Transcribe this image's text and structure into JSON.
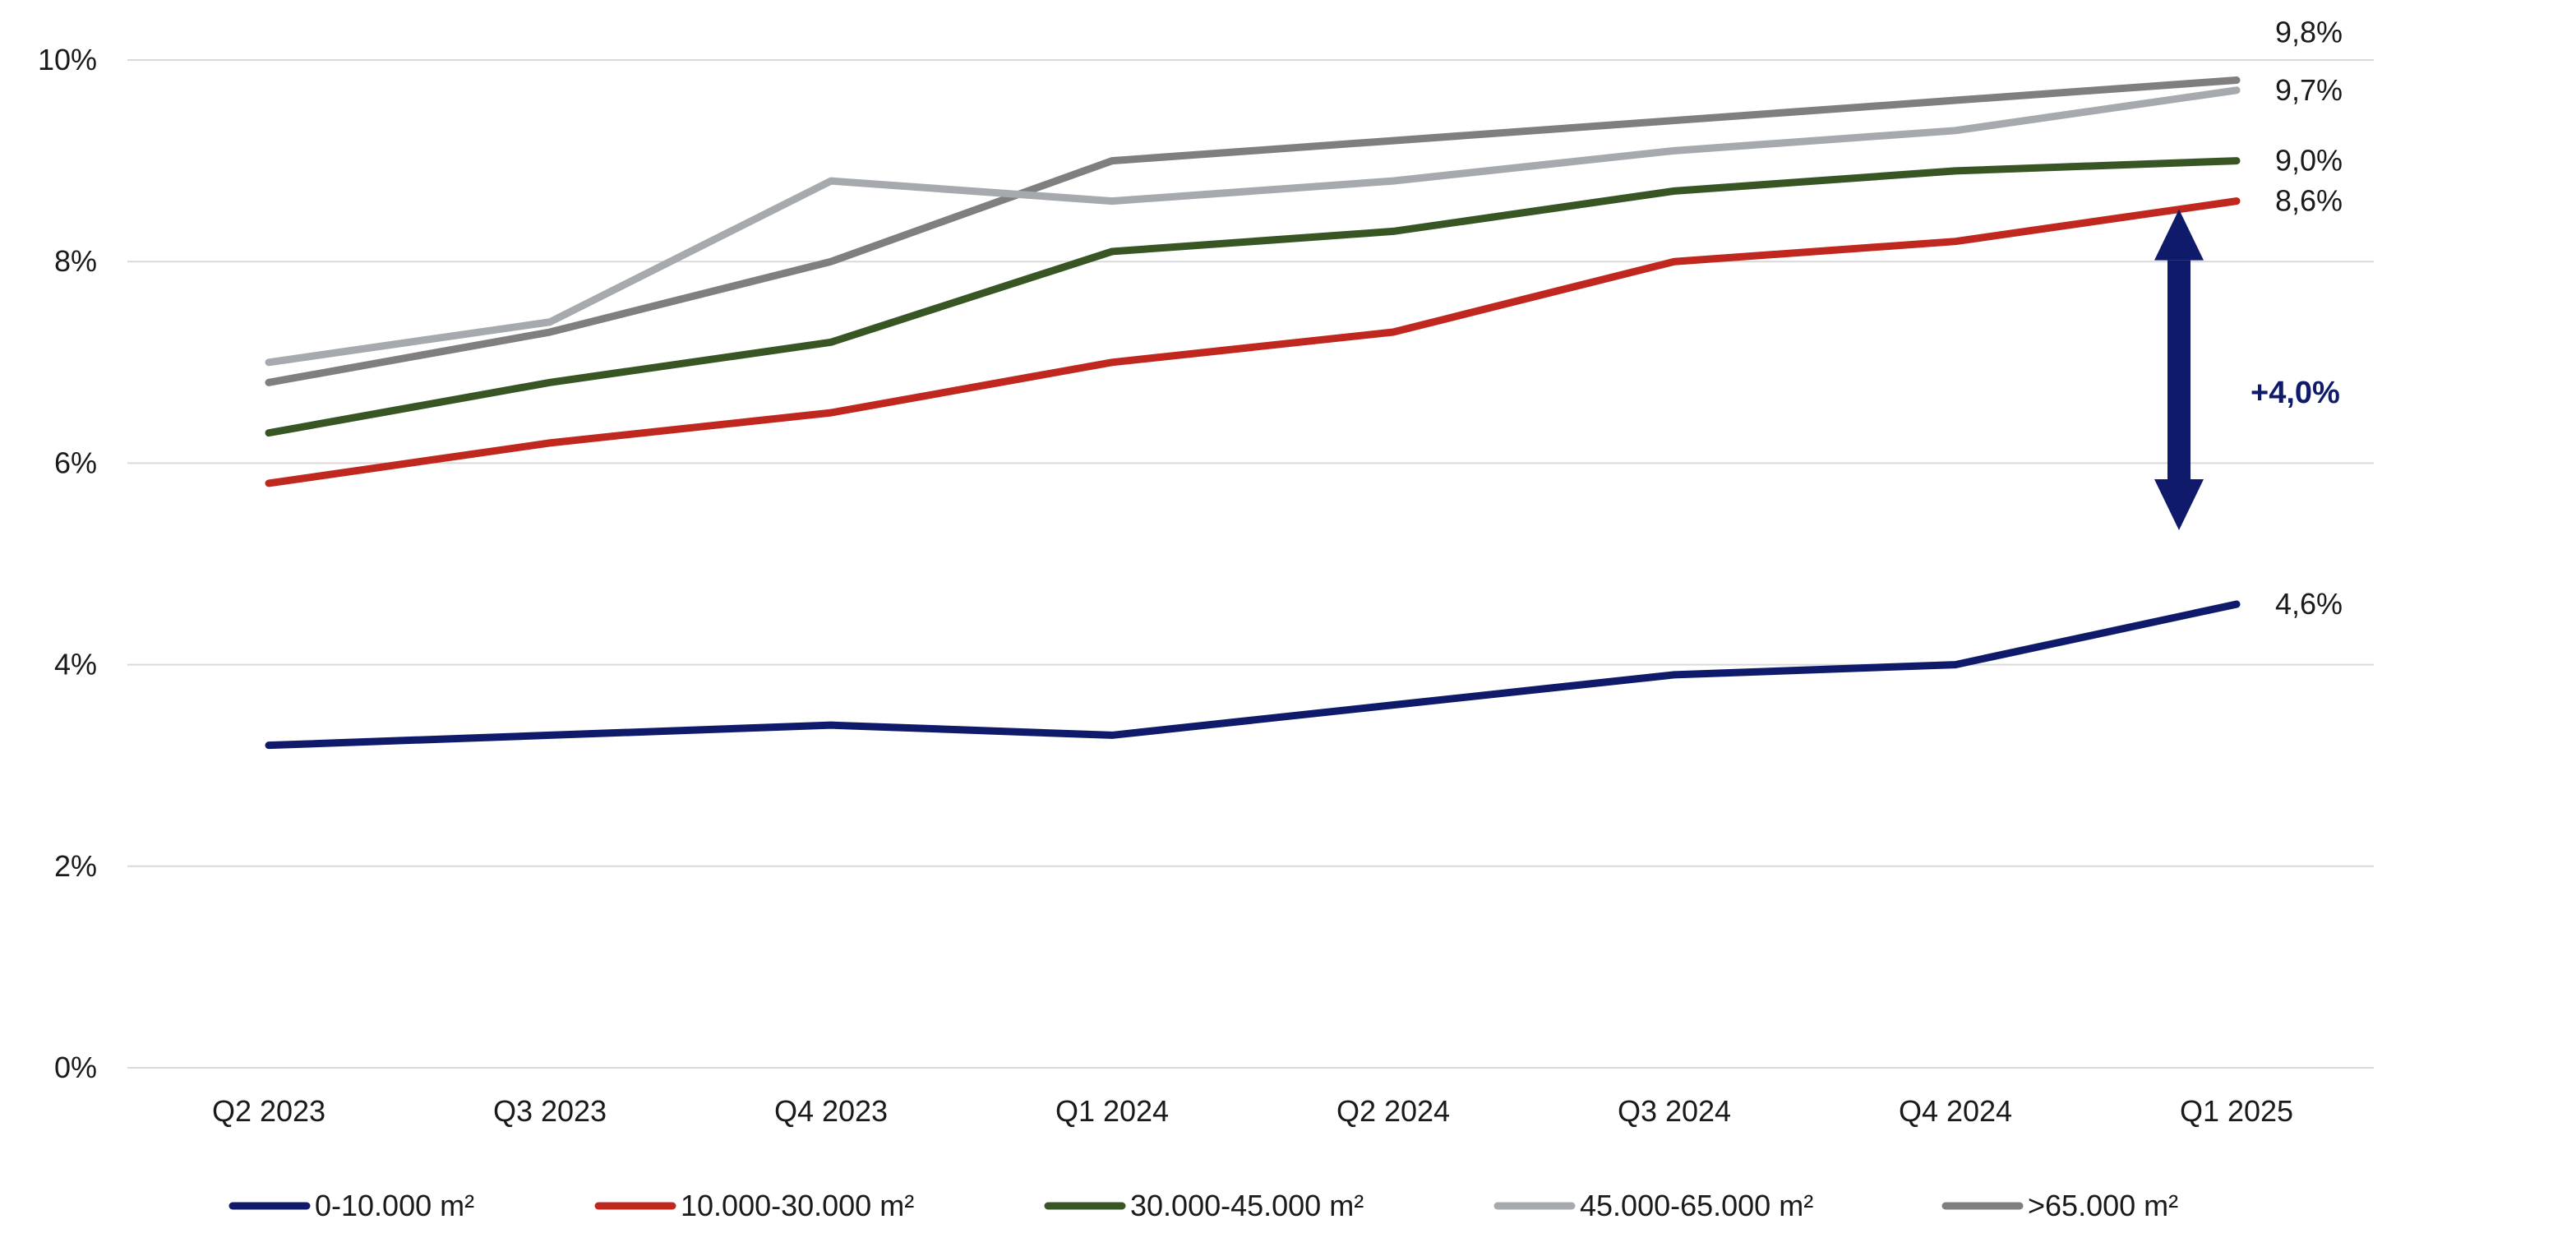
{
  "chart_data": {
    "type": "line",
    "title": "",
    "xlabel": "",
    "ylabel": "",
    "categories": [
      "Q2 2023",
      "Q3 2023",
      "Q4 2023",
      "Q1 2024",
      "Q2 2024",
      "Q3 2024",
      "Q4 2024",
      "Q1 2025"
    ],
    "ylim": [
      0,
      10
    ],
    "yticks": [
      0,
      2,
      4,
      6,
      8,
      10
    ],
    "ytick_labels": [
      "0%",
      "2%",
      "4%",
      "6%",
      "8%",
      "10%"
    ],
    "grid": true,
    "legend_position": "bottom",
    "series": [
      {
        "name": "0-10.000 m²",
        "color": "#0f1a6b",
        "values": [
          3.2,
          3.3,
          3.4,
          3.3,
          3.6,
          3.9,
          4.0,
          4.6
        ],
        "end_label": "4,6%"
      },
      {
        "name": "10.000-30.000 m²",
        "color": "#c0281f",
        "values": [
          5.8,
          6.2,
          6.5,
          7.0,
          7.3,
          8.0,
          8.2,
          8.6
        ],
        "end_label": "8,6%"
      },
      {
        "name": "30.000-45.000 m²",
        "color": "#375623",
        "values": [
          6.3,
          6.8,
          7.2,
          8.1,
          8.3,
          8.7,
          8.9,
          9.0
        ],
        "end_label": "9,0%"
      },
      {
        "name": "45.000-65.000 m²",
        "color": "#a6aaae",
        "values": [
          7.0,
          7.4,
          8.8,
          8.6,
          8.8,
          9.1,
          9.3,
          9.7
        ],
        "end_label": "9,7%"
      },
      {
        "name": ">65.000 m²",
        "color": "#7f7f7f",
        "values": [
          6.8,
          7.3,
          8.0,
          9.0,
          9.2,
          9.4,
          9.6,
          9.8
        ],
        "end_label": "9,8%"
      }
    ],
    "annotation": {
      "type": "double-arrow",
      "from_value": 4.6,
      "to_value": 8.6,
      "label": "+4,0%",
      "color": "#0f1a6b"
    }
  }
}
